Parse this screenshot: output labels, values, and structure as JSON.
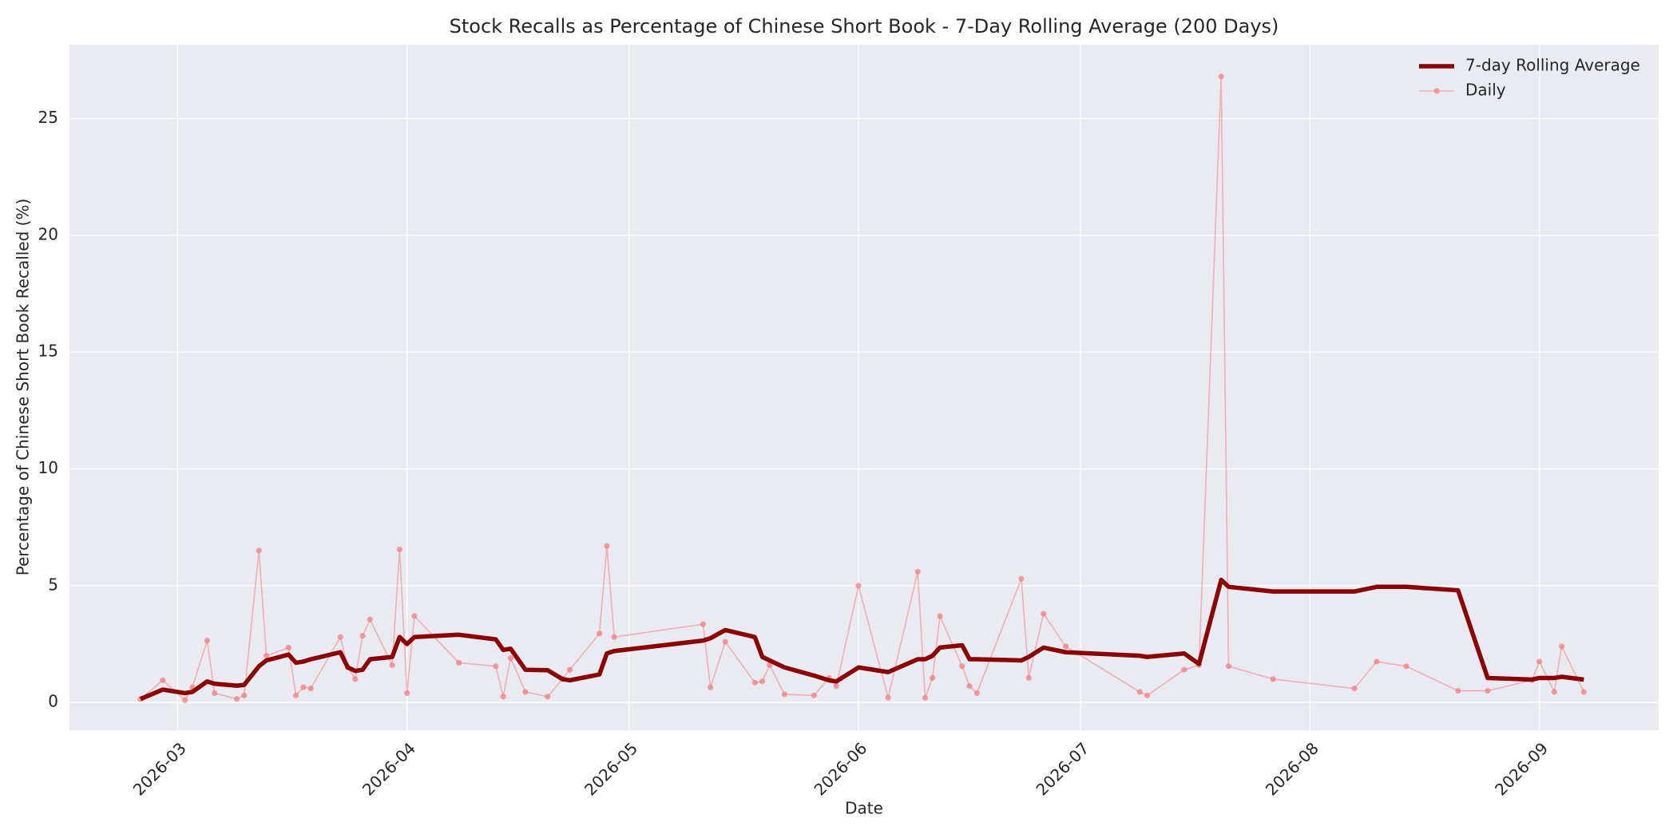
{
  "chart_data": {
    "type": "line",
    "title": "Stock Recalls as Percentage of Chinese Short Book - 7-Day Rolling Average (200 Days)",
    "x_label": "Date",
    "y_label": "Percentage of Chinese Short Book Recalled (%)",
    "x": [
      20508,
      20511,
      20514,
      20515,
      20517,
      20518,
      20521,
      20522,
      20524,
      20525,
      20528,
      20529,
      20530,
      20531,
      20535,
      20536,
      20537,
      20538,
      20539,
      20542,
      20543,
      20544,
      20545,
      20551,
      20556,
      20557,
      20558,
      20560,
      20563,
      20565,
      20566,
      20570,
      20571,
      20572,
      20584,
      20585,
      20587,
      20591,
      20592,
      20593,
      20595,
      20599,
      20601,
      20602,
      20605,
      20609,
      20613,
      20614,
      20615,
      20616,
      20619,
      20620,
      20621,
      20627,
      20628,
      20630,
      20633,
      20643,
      20644,
      20649,
      20651,
      20654,
      20655,
      20661,
      20672,
      20675,
      20679,
      20686,
      20690,
      20696,
      20697,
      20699,
      20700,
      20703
    ],
    "series": [
      {
        "name": "7-day Rolling Average",
        "color": "#8b0000",
        "values": [
          0.15,
          0.55,
          0.4,
          0.45,
          0.9,
          0.8,
          0.72,
          0.75,
          1.55,
          1.8,
          2.05,
          1.7,
          1.75,
          1.85,
          2.15,
          1.5,
          1.35,
          1.4,
          1.85,
          1.95,
          2.8,
          2.5,
          2.8,
          2.9,
          2.7,
          2.25,
          2.3,
          1.4,
          1.38,
          1.0,
          0.95,
          1.2,
          2.1,
          2.2,
          2.65,
          2.75,
          3.1,
          2.8,
          1.95,
          1.8,
          1.5,
          1.15,
          0.95,
          0.9,
          1.5,
          1.3,
          1.85,
          1.85,
          2.0,
          2.35,
          2.45,
          1.85,
          1.85,
          1.8,
          1.95,
          2.35,
          2.15,
          2.0,
          1.95,
          2.1,
          1.65,
          5.25,
          4.95,
          4.75,
          4.75,
          4.95,
          4.95,
          4.8,
          1.05,
          0.98,
          1.05,
          1.05,
          1.1,
          0.98
        ]
      },
      {
        "name": "Daily",
        "color": "#f08080",
        "values": [
          0.15,
          0.95,
          0.1,
          0.65,
          2.65,
          0.4,
          0.15,
          0.3,
          6.5,
          2.0,
          2.35,
          0.3,
          0.65,
          0.6,
          2.8,
          1.5,
          1.0,
          2.85,
          3.55,
          1.6,
          6.55,
          0.4,
          3.7,
          1.7,
          1.55,
          0.25,
          1.9,
          0.45,
          0.25,
          1.0,
          1.4,
          2.95,
          6.7,
          2.8,
          3.35,
          0.65,
          2.6,
          0.85,
          0.9,
          1.6,
          0.35,
          0.3,
          1.05,
          0.7,
          5.0,
          0.2,
          5.6,
          0.2,
          1.05,
          3.7,
          1.55,
          0.7,
          0.4,
          5.3,
          1.05,
          3.8,
          2.4,
          0.45,
          0.3,
          1.4,
          1.6,
          26.8,
          1.55,
          1.0,
          0.6,
          1.75,
          1.55,
          0.5,
          0.5,
          0.95,
          1.75,
          0.45,
          2.4,
          0.45
        ]
      }
    ],
    "xlim": [
      20498.4,
      20713.1
    ],
    "xticks": [
      {
        "value": 20513,
        "label": "2026-03"
      },
      {
        "value": 20544,
        "label": "2026-04"
      },
      {
        "value": 20574,
        "label": "2026-05"
      },
      {
        "value": 20605,
        "label": "2026-06"
      },
      {
        "value": 20635,
        "label": "2026-07"
      },
      {
        "value": 20666,
        "label": "2026-08"
      },
      {
        "value": 20697,
        "label": "2026-09"
      }
    ],
    "ylim": [
      -1.19,
      28.16
    ],
    "yticks": [
      0,
      5,
      10,
      15,
      20,
      25
    ],
    "grid": true,
    "legend": "upper right"
  }
}
